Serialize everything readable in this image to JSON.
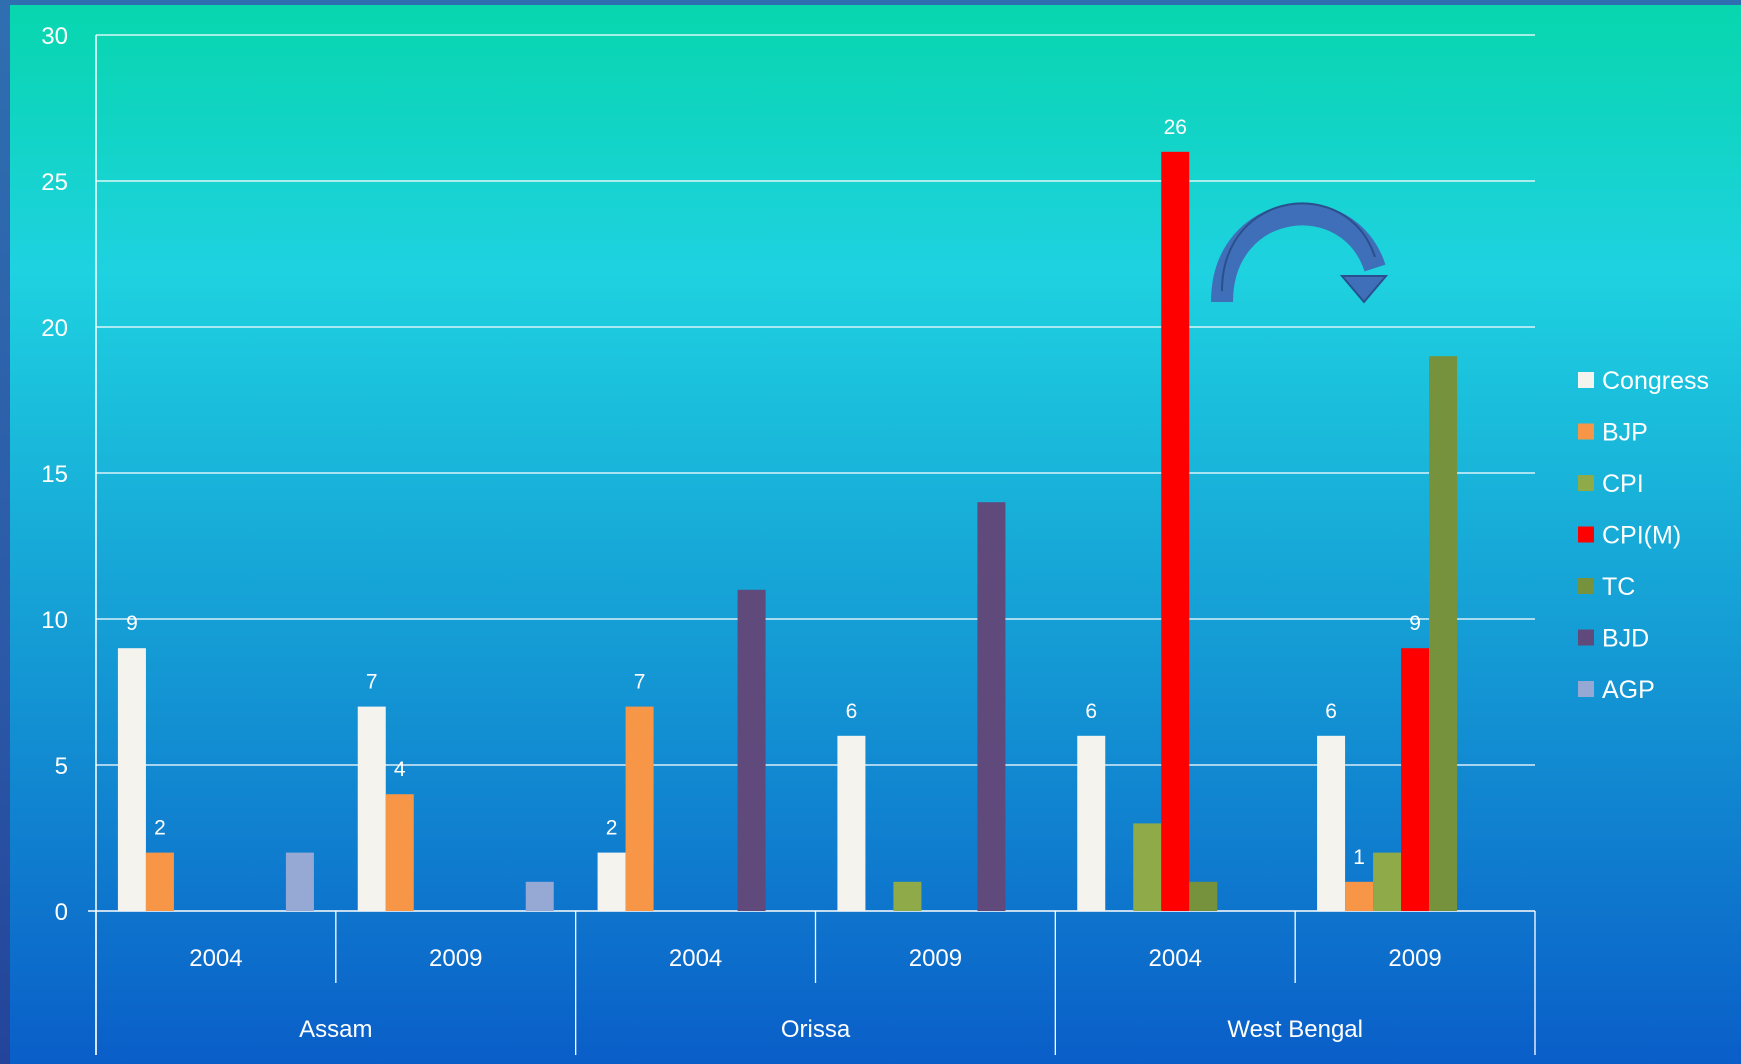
{
  "colors": {
    "frame": "#2c5aa8",
    "plot_top": "#07d6ae",
    "plot_mid": "#1ed2e0",
    "plot_bottom": "#0a5ec8",
    "gridline": "#ffffff",
    "arrow": "#3f6fb8"
  },
  "chart_data": {
    "type": "bar",
    "title": "",
    "xlabel": "",
    "ylabel": "",
    "ylim": [
      0,
      30
    ],
    "yticks": [
      0,
      5,
      10,
      15,
      20,
      25,
      30
    ],
    "grid": true,
    "legend_position": "right",
    "groups": [
      {
        "state": "Assam",
        "years": [
          "2004",
          "2009"
        ]
      },
      {
        "state": "Orissa",
        "years": [
          "2004",
          "2009"
        ]
      },
      {
        "state": "West Bengal",
        "years": [
          "2004",
          "2009"
        ]
      }
    ],
    "categories": [
      "2004",
      "2009",
      "2004",
      "2009",
      "2004",
      "2009"
    ],
    "series": [
      {
        "name": "Congress",
        "color": "#f5f3ee",
        "values": [
          9,
          7,
          2,
          6,
          6,
          6
        ],
        "labels": [
          "9",
          "7",
          "2",
          "6",
          "6",
          "6"
        ]
      },
      {
        "name": "BJP",
        "color": "#f79646",
        "values": [
          2,
          4,
          7,
          0,
          0,
          1
        ],
        "labels": [
          "2",
          "4",
          "7",
          "",
          "",
          "1"
        ]
      },
      {
        "name": "CPI",
        "color": "#8faa48",
        "values": [
          0,
          0,
          0,
          1,
          3,
          2
        ],
        "labels": [
          "",
          "",
          "",
          "",
          "",
          ""
        ]
      },
      {
        "name": "CPI(M)",
        "color": "#ff0000",
        "values": [
          0,
          0,
          0,
          0,
          26,
          9
        ],
        "labels": [
          "",
          "",
          "",
          "",
          "26",
          "9"
        ]
      },
      {
        "name": "TC",
        "color": "#76923c",
        "values": [
          0,
          0,
          0,
          0,
          1,
          19
        ],
        "labels": [
          "",
          "",
          "",
          "",
          "",
          ""
        ]
      },
      {
        "name": "BJD",
        "color": "#604a7b",
        "values": [
          0,
          0,
          11,
          14,
          0,
          0
        ],
        "labels": [
          "",
          "",
          "",
          "",
          "",
          ""
        ]
      },
      {
        "name": "AGP",
        "color": "#95a9d4",
        "values": [
          2,
          1,
          0,
          0,
          0,
          0
        ],
        "labels": [
          "",
          "",
          "",
          "",
          "",
          ""
        ]
      }
    ],
    "annotation": "curved arrow"
  }
}
